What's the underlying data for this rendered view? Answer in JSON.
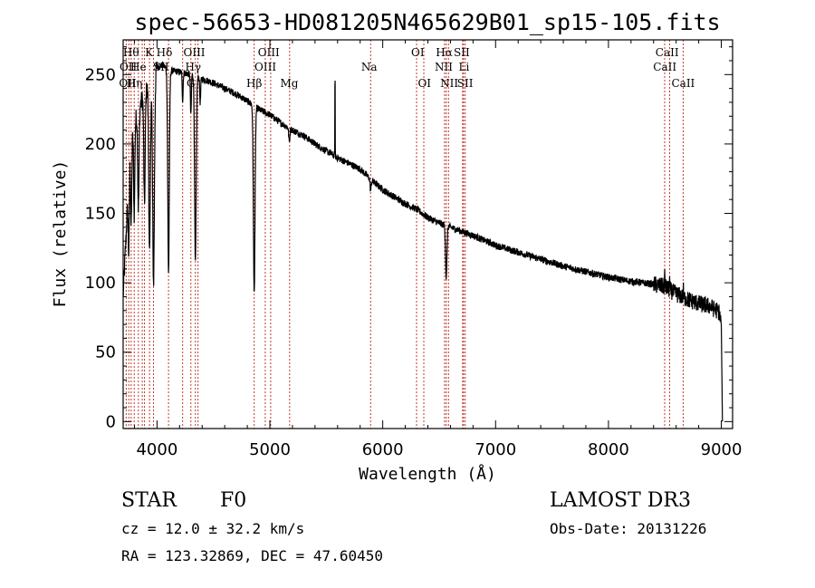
{
  "chart_data": {
    "type": "line",
    "title": "spec-56653-HD081205N465629B01_sp15-105.fits",
    "xlabel": "Wavelength (Å)",
    "ylabel": "Flux (relative)",
    "xlim": [
      3700,
      9100
    ],
    "ylim": [
      -5,
      275
    ],
    "x_ticks": [
      4000,
      5000,
      6000,
      7000,
      8000,
      9000
    ],
    "y_ticks": [
      0,
      50,
      100,
      150,
      200,
      250
    ],
    "series": [
      {
        "name": "flux",
        "continuum": [
          [
            3700,
            90
          ],
          [
            3730,
            140
          ],
          [
            3760,
            195
          ],
          [
            3800,
            215
          ],
          [
            3850,
            228
          ],
          [
            3900,
            238
          ],
          [
            3950,
            248
          ],
          [
            4000,
            255
          ],
          [
            4050,
            257
          ],
          [
            4100,
            253
          ],
          [
            4200,
            252
          ],
          [
            4300,
            250
          ],
          [
            4400,
            247
          ],
          [
            4500,
            244
          ],
          [
            4600,
            240
          ],
          [
            4700,
            236
          ],
          [
            4800,
            231
          ],
          [
            4900,
            225
          ],
          [
            5000,
            221
          ],
          [
            5100,
            215
          ],
          [
            5200,
            210
          ],
          [
            5300,
            206
          ],
          [
            5400,
            200
          ],
          [
            5500,
            195
          ],
          [
            5600,
            190
          ],
          [
            5700,
            186
          ],
          [
            5800,
            182
          ],
          [
            5900,
            174
          ],
          [
            6000,
            167
          ],
          [
            6100,
            162
          ],
          [
            6200,
            157
          ],
          [
            6300,
            153
          ],
          [
            6400,
            147
          ],
          [
            6500,
            143
          ],
          [
            6600,
            140
          ],
          [
            6700,
            137
          ],
          [
            6800,
            134
          ],
          [
            7000,
            127
          ],
          [
            7200,
            122
          ],
          [
            7400,
            117
          ],
          [
            7600,
            112
          ],
          [
            7800,
            108
          ],
          [
            8000,
            104
          ],
          [
            8200,
            101
          ],
          [
            8400,
            99
          ],
          [
            8500,
            97
          ],
          [
            8600,
            92
          ],
          [
            8700,
            88
          ],
          [
            8800,
            85
          ],
          [
            8900,
            83
          ],
          [
            8980,
            79
          ],
          [
            9000,
            70
          ],
          [
            9010,
            0
          ]
        ],
        "absorptions": [
          {
            "center": 3750,
            "depth": 55,
            "width": 5
          },
          {
            "center": 3771,
            "depth": 60,
            "width": 5
          },
          {
            "center": 3798,
            "depth": 65,
            "width": 5
          },
          {
            "center": 3835,
            "depth": 70,
            "width": 6
          },
          {
            "center": 3889,
            "depth": 80,
            "width": 6
          },
          {
            "center": 3934,
            "depth": 125,
            "width": 7
          },
          {
            "center": 3969,
            "depth": 150,
            "width": 8
          },
          {
            "center": 4102,
            "depth": 145,
            "width": 7
          },
          {
            "center": 4227,
            "depth": 20,
            "width": 4
          },
          {
            "center": 4300,
            "depth": 30,
            "width": 4
          },
          {
            "center": 4340,
            "depth": 135,
            "width": 7
          },
          {
            "center": 4383,
            "depth": 18,
            "width": 4
          },
          {
            "center": 4861,
            "depth": 135,
            "width": 7
          },
          {
            "center": 5172,
            "depth": 10,
            "width": 5
          },
          {
            "center": 5893,
            "depth": 8,
            "width": 5
          },
          {
            "center": 6563,
            "depth": 38,
            "width": 6
          }
        ],
        "emissions": [
          {
            "center": 5577,
            "height": 75,
            "width": 1.2
          },
          {
            "center": 8498,
            "height": 8,
            "width": 2
          },
          {
            "center": 8542,
            "height": 6,
            "width": 2
          },
          {
            "center": 8662,
            "height": 8,
            "width": 2
          }
        ],
        "noise_amplitude": 2.5
      }
    ],
    "line_markers": [
      3727,
      3750,
      3771,
      3798,
      3835,
      3869,
      3889,
      3934,
      3969,
      4102,
      4227,
      4300,
      4340,
      4363,
      4861,
      4959,
      5007,
      5175,
      5893,
      6300,
      6364,
      6548,
      6563,
      6583,
      6708,
      6716,
      6731,
      8498,
      8542,
      8662
    ],
    "line_labels": [
      {
        "text": "Hθ",
        "x": 3770,
        "row": 1
      },
      {
        "text": "K",
        "x": 3930,
        "row": 1
      },
      {
        "text": "Hδ",
        "x": 4065,
        "row": 1
      },
      {
        "text": "OIII",
        "x": 4330,
        "row": 1
      },
      {
        "text": "OIII",
        "x": 4990,
        "row": 1
      },
      {
        "text": "OI",
        "x": 6310,
        "row": 1
      },
      {
        "text": "Hα",
        "x": 6545,
        "row": 1
      },
      {
        "text": "SII",
        "x": 6700,
        "row": 1
      },
      {
        "text": "CaII",
        "x": 8520,
        "row": 1
      },
      {
        "text": "OII",
        "x": 3745,
        "row": 2
      },
      {
        "text": "He",
        "x": 3835,
        "row": 2
      },
      {
        "text": "SII",
        "x": 4035,
        "row": 2
      },
      {
        "text": "Hγ",
        "x": 4320,
        "row": 2
      },
      {
        "text": "OIII",
        "x": 4960,
        "row": 2
      },
      {
        "text": "Na",
        "x": 5880,
        "row": 2
      },
      {
        "text": "NII",
        "x": 6540,
        "row": 2
      },
      {
        "text": "Li",
        "x": 6720,
        "row": 2
      },
      {
        "text": "CaII",
        "x": 8500,
        "row": 2
      },
      {
        "text": "OII",
        "x": 3740,
        "row": 3
      },
      {
        "text": "Hη",
        "x": 3800,
        "row": 3
      },
      {
        "text": "G",
        "x": 4300,
        "row": 3
      },
      {
        "text": "Hβ",
        "x": 4861,
        "row": 3
      },
      {
        "text": "Mg",
        "x": 5172,
        "row": 3
      },
      {
        "text": "OI",
        "x": 6370,
        "row": 3
      },
      {
        "text": "NII",
        "x": 6590,
        "row": 3
      },
      {
        "text": "SII",
        "x": 6730,
        "row": 3
      },
      {
        "text": "CaII",
        "x": 8662,
        "row": 3
      }
    ]
  },
  "info": {
    "object_class": "STAR",
    "subclass": "F0",
    "survey": "LAMOST DR3",
    "redshift_text": "cz = 12.0 ± 32.2 km/s",
    "obs_date": "Obs-Date: 20131226",
    "coords": "RA = 123.32869, DEC =  47.60450"
  },
  "colors": {
    "spectrum": "#000000",
    "marker": "#c0392b",
    "axis": "#000000"
  }
}
